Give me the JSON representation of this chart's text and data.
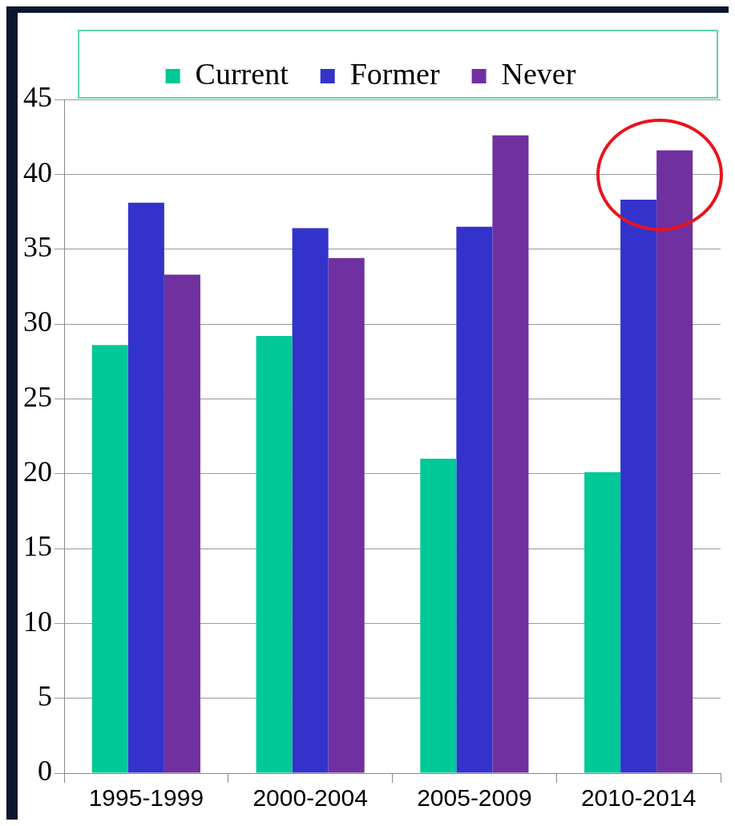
{
  "chart_data": {
    "type": "bar",
    "categories": [
      "1995-1999",
      "2000-2004",
      "2005-2009",
      "2010-2014"
    ],
    "series": [
      {
        "name": "Current",
        "color": "#00c896",
        "values": [
          28.6,
          29.2,
          21.0,
          20.1
        ]
      },
      {
        "name": "Former",
        "color": "#3333cc",
        "values": [
          38.1,
          36.4,
          36.5,
          38.3
        ]
      },
      {
        "name": "Never",
        "color": "#7030a0",
        "values": [
          33.3,
          34.4,
          42.6,
          41.6
        ]
      }
    ],
    "ylim": [
      0,
      45
    ],
    "yticks": [
      0,
      5,
      10,
      15,
      20,
      25,
      30,
      35,
      40,
      45
    ],
    "grid": "y",
    "legend": "top"
  }
}
